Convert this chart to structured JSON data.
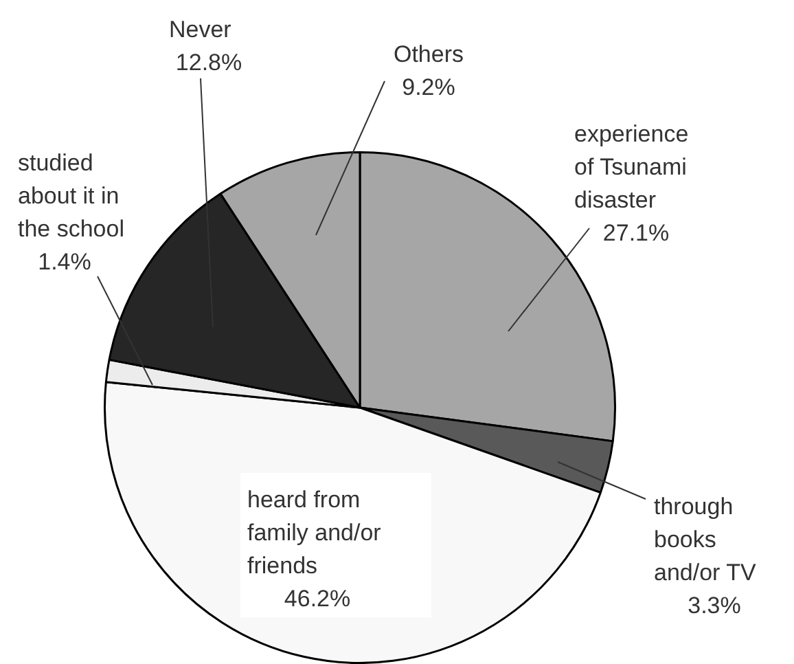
{
  "chart_data": {
    "type": "pie",
    "categories": [
      "experience\nof Tsunami\ndisaster",
      "through\nbooks\nand/or TV",
      "heard from\nfamily and/or\nfriends",
      "studied\nabout it in\nthe school",
      "Never",
      "Others"
    ],
    "values": [
      27.1,
      3.3,
      46.2,
      1.4,
      12.8,
      9.2
    ],
    "value_labels": [
      "27.1%",
      "3.3%",
      "46.2%",
      "1.4%",
      "12.8%",
      "9.2%"
    ],
    "colors": [
      "#a6a6a6",
      "#595959",
      "#f8f8f8",
      "#ececec",
      "#262626",
      "#a6a6a6"
    ],
    "legend": false
  }
}
